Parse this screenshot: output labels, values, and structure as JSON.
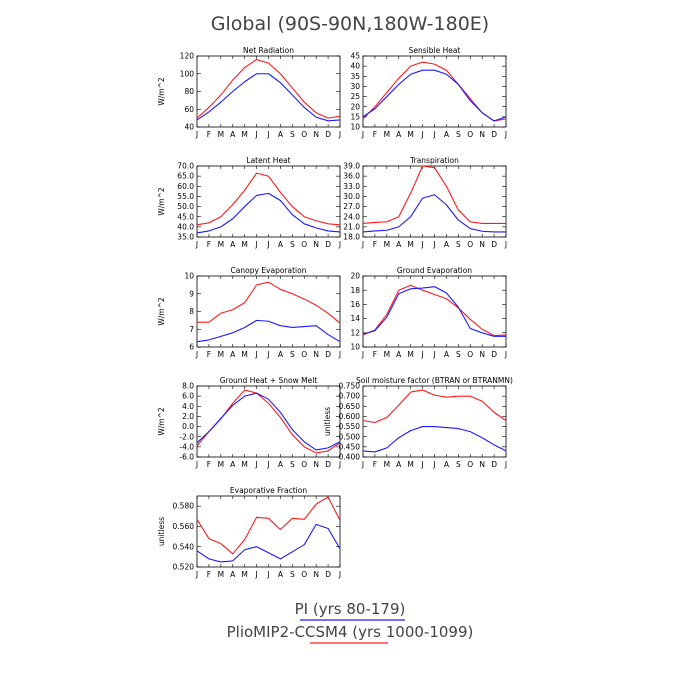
{
  "figure": {
    "title": "Global (90S-90N,180W-180E)",
    "legend": [
      {
        "label": "PI (yrs 80-179)",
        "color": "#1a1aff"
      },
      {
        "label": "PlioMIP2-CCSM4 (yrs 1000-1099)",
        "color": "#ff1a1a"
      }
    ]
  },
  "chart_data": [
    {
      "type": "line",
      "title": "Net Radiation",
      "ylabel": "W/m^2",
      "categories": [
        "J",
        "F",
        "M",
        "A",
        "M",
        "J",
        "J",
        "A",
        "S",
        "O",
        "N",
        "D",
        "J"
      ],
      "ylim": [
        40,
        120
      ],
      "yticks": [
        40,
        60,
        80,
        100,
        120
      ],
      "ytick_labels": [
        "40",
        "60",
        "80",
        "100",
        "120"
      ],
      "series": [
        {
          "color": "#ff1a1a",
          "values": [
            50,
            62,
            76,
            93,
            107,
            116,
            112,
            100,
            84,
            68,
            56,
            50,
            52
          ]
        },
        {
          "color": "#1a1aff",
          "values": [
            48,
            57,
            68,
            80,
            91,
            100,
            100,
            90,
            76,
            62,
            51,
            47,
            48
          ]
        }
      ]
    },
    {
      "type": "line",
      "title": "Sensible Heat",
      "ylabel": "",
      "categories": [
        "J",
        "F",
        "M",
        "A",
        "M",
        "J",
        "J",
        "A",
        "S",
        "O",
        "N",
        "D",
        "J"
      ],
      "ylim": [
        10,
        45
      ],
      "yticks": [
        10,
        15,
        20,
        25,
        30,
        35,
        40,
        45
      ],
      "ytick_labels": [
        "10",
        "15",
        "20",
        "25",
        "30",
        "35",
        "40",
        "45"
      ],
      "series": [
        {
          "color": "#ff1a1a",
          "values": [
            14,
            20,
            27,
            34,
            40,
            42,
            41,
            38,
            31,
            24,
            17,
            13,
            14
          ]
        },
        {
          "color": "#1a1aff",
          "values": [
            15,
            19,
            25,
            31,
            36,
            38,
            38,
            36,
            31,
            23,
            17,
            13,
            15
          ]
        }
      ]
    },
    {
      "type": "line",
      "title": "Latent Heat",
      "ylabel": "W/m^2",
      "categories": [
        "J",
        "F",
        "M",
        "A",
        "M",
        "J",
        "J",
        "A",
        "S",
        "O",
        "N",
        "D",
        "J"
      ],
      "ylim": [
        35,
        70
      ],
      "yticks": [
        35,
        40,
        45,
        50,
        55,
        60,
        65,
        70
      ],
      "ytick_labels": [
        "35.0",
        "40.0",
        "45.0",
        "50.0",
        "55.0",
        "60.0",
        "65.0",
        "70.0"
      ],
      "series": [
        {
          "color": "#ff1a1a",
          "values": [
            41,
            42,
            45,
            51,
            58,
            66.5,
            65,
            57,
            50,
            45,
            43,
            41.5,
            41
          ]
        },
        {
          "color": "#1a1aff",
          "values": [
            37,
            38,
            40,
            44,
            50,
            55.5,
            56.5,
            53,
            46,
            41.5,
            39.5,
            38,
            37.5
          ]
        }
      ]
    },
    {
      "type": "line",
      "title": "Transpiration",
      "ylabel": "",
      "categories": [
        "J",
        "F",
        "M",
        "A",
        "M",
        "J",
        "J",
        "A",
        "S",
        "O",
        "N",
        "D",
        "J"
      ],
      "ylim": [
        18,
        39
      ],
      "yticks": [
        18,
        21,
        24,
        27,
        30,
        33,
        36,
        39
      ],
      "ytick_labels": [
        "18.0",
        "21.0",
        "24.0",
        "27.0",
        "30.0",
        "33.0",
        "36.0",
        "39.0"
      ],
      "series": [
        {
          "color": "#ff1a1a",
          "values": [
            22,
            22.3,
            22.5,
            24,
            31,
            39,
            38.5,
            33,
            26,
            22.5,
            22,
            22,
            22
          ]
        },
        {
          "color": "#1a1aff",
          "values": [
            19.5,
            19.8,
            20,
            21,
            24,
            29.5,
            30.5,
            27.5,
            23,
            20.5,
            19.7,
            19.5,
            19.5
          ]
        }
      ]
    },
    {
      "type": "line",
      "title": "Canopy Evaporation",
      "ylabel": "W/m^2",
      "categories": [
        "J",
        "F",
        "M",
        "A",
        "M",
        "J",
        "J",
        "A",
        "S",
        "O",
        "N",
        "D",
        "J"
      ],
      "ylim": [
        6,
        10
      ],
      "yticks": [
        6,
        7,
        8,
        9,
        10
      ],
      "ytick_labels": [
        "6",
        "7",
        "8",
        "9",
        "10"
      ],
      "series": [
        {
          "color": "#ff1a1a",
          "values": [
            7.4,
            7.4,
            7.9,
            8.1,
            8.5,
            9.5,
            9.65,
            9.25,
            9.0,
            8.7,
            8.35,
            7.9,
            7.35
          ]
        },
        {
          "color": "#1a1aff",
          "values": [
            6.3,
            6.4,
            6.6,
            6.8,
            7.1,
            7.5,
            7.45,
            7.2,
            7.1,
            7.15,
            7.2,
            6.7,
            6.3
          ]
        }
      ]
    },
    {
      "type": "line",
      "title": "Ground Evaporation",
      "ylabel": "",
      "categories": [
        "J",
        "F",
        "M",
        "A",
        "M",
        "J",
        "J",
        "A",
        "S",
        "O",
        "N",
        "D",
        "J"
      ],
      "ylim": [
        10,
        20
      ],
      "yticks": [
        10,
        12,
        14,
        16,
        18,
        20
      ],
      "ytick_labels": [
        "10",
        "12",
        "14",
        "16",
        "18",
        "20"
      ],
      "series": [
        {
          "color": "#ff1a1a",
          "values": [
            11.7,
            12.4,
            14.6,
            18.0,
            18.7,
            18.0,
            17.4,
            16.8,
            15.5,
            13.9,
            12.5,
            11.6,
            11.7
          ]
        },
        {
          "color": "#1a1aff",
          "values": [
            11.8,
            12.3,
            14.2,
            17.5,
            18.2,
            18.3,
            18.5,
            17.6,
            15.6,
            12.6,
            12.0,
            11.5,
            11.5
          ]
        }
      ]
    },
    {
      "type": "line",
      "title": "Ground Heat + Snow Melt",
      "ylabel": "W/m^2",
      "categories": [
        "J",
        "F",
        "M",
        "A",
        "M",
        "J",
        "J",
        "A",
        "S",
        "O",
        "N",
        "D",
        "J"
      ],
      "ylim": [
        -6,
        8
      ],
      "yticks": [
        -6,
        -4,
        -2,
        0,
        2,
        4,
        6,
        8
      ],
      "ytick_labels": [
        "-6.0",
        "-4.0",
        "-2.0",
        "0.0",
        "2.0",
        "4.0",
        "6.0",
        "8.0"
      ],
      "series": [
        {
          "color": "#ff1a1a",
          "values": [
            -3.8,
            -1.0,
            1.5,
            4.6,
            7.2,
            6.6,
            4.6,
            1.8,
            -1.6,
            -4.0,
            -5.2,
            -4.8,
            -3.2
          ]
        },
        {
          "color": "#1a1aff",
          "values": [
            -3.2,
            -1.0,
            1.6,
            4.2,
            6.0,
            6.6,
            5.4,
            2.8,
            -0.6,
            -3.0,
            -4.6,
            -4.2,
            -3.0
          ]
        }
      ]
    },
    {
      "type": "line",
      "title": "Soil moisture factor (BTRAN or BTRANMN)",
      "ylabel": "unitless",
      "categories": [
        "J",
        "F",
        "M",
        "A",
        "M",
        "J",
        "J",
        "A",
        "S",
        "O",
        "N",
        "D",
        "J"
      ],
      "ylim": [
        0.4,
        0.75
      ],
      "yticks": [
        0.4,
        0.45,
        0.5,
        0.55,
        0.6,
        0.65,
        0.7,
        0.75
      ],
      "ytick_labels": [
        "0.400",
        "0.450",
        "0.500",
        "0.550",
        "0.600",
        "0.650",
        "0.700",
        "0.750"
      ],
      "series": [
        {
          "color": "#ff1a1a",
          "values": [
            0.58,
            0.57,
            0.595,
            0.655,
            0.72,
            0.73,
            0.705,
            0.695,
            0.7,
            0.7,
            0.675,
            0.62,
            0.58
          ]
        },
        {
          "color": "#1a1aff",
          "values": [
            0.43,
            0.425,
            0.445,
            0.495,
            0.53,
            0.55,
            0.55,
            0.545,
            0.54,
            0.525,
            0.495,
            0.46,
            0.43
          ]
        }
      ]
    },
    {
      "type": "line",
      "title": "Evaporative Fraction",
      "ylabel": "unitless",
      "categories": [
        "J",
        "F",
        "M",
        "A",
        "M",
        "J",
        "J",
        "A",
        "S",
        "O",
        "N",
        "D",
        "J"
      ],
      "ylim": [
        0.52,
        0.59
      ],
      "yticks": [
        0.52,
        0.54,
        0.56,
        0.58
      ],
      "ytick_labels": [
        "0.520",
        "0.540",
        "0.560",
        "0.580"
      ],
      "series": [
        {
          "color": "#ff1a1a",
          "values": [
            0.567,
            0.548,
            0.543,
            0.533,
            0.547,
            0.569,
            0.568,
            0.557,
            0.568,
            0.567,
            0.582,
            0.589,
            0.566
          ]
        },
        {
          "color": "#1a1aff",
          "values": [
            0.536,
            0.528,
            0.525,
            0.526,
            0.537,
            0.54,
            0.534,
            0.528,
            0.535,
            0.542,
            0.562,
            0.558,
            0.538
          ]
        }
      ]
    }
  ]
}
